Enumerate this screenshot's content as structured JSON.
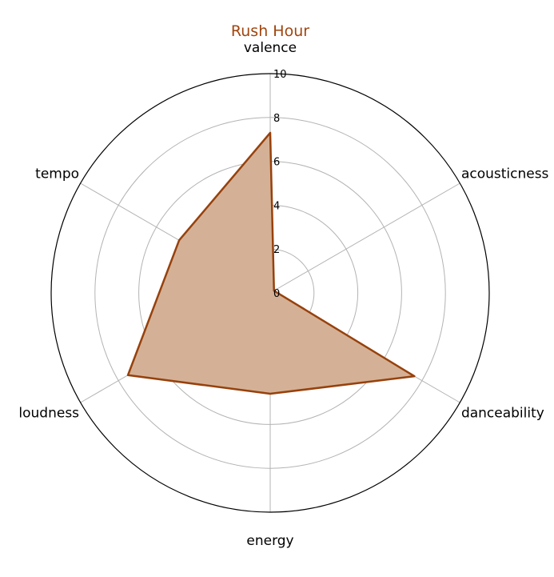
{
  "chart_data": {
    "type": "radar",
    "title": "Rush Hour",
    "axes": [
      "valence",
      "acousticness",
      "danceability",
      "energy",
      "loudness",
      "tempo"
    ],
    "values": [
      7.3,
      0.2,
      7.6,
      4.6,
      7.5,
      4.8
    ],
    "rlim": [
      0,
      10
    ],
    "rticks": [
      0,
      2,
      4,
      6,
      8,
      10
    ],
    "grid": true,
    "colors": {
      "title": "#a0450e",
      "line": "#97410c",
      "fill": "#d4b196",
      "grid": "#b3b3b3",
      "outer": "#000000"
    }
  }
}
